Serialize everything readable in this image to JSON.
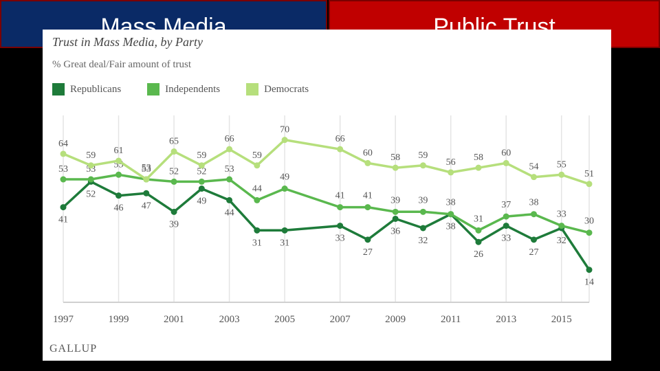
{
  "slide": {
    "left_title": "Mass Media",
    "right_title": "Public Trust",
    "left_color": "#0a2a66",
    "right_color": "#c00000"
  },
  "source_label": "GALLUP",
  "chart_data": {
    "type": "line",
    "title": "Trust in Mass Media, by Party",
    "subtitle": "% Great deal/Fair amount of trust",
    "x": [
      1997,
      1998,
      1999,
      2000,
      2001,
      2002,
      2003,
      2004,
      2005,
      2007,
      2008,
      2009,
      2010,
      2011,
      2012,
      2013,
      2014,
      2015,
      2016
    ],
    "x_tick_labels": [
      "1997",
      "1999",
      "2001",
      "2003",
      "2005",
      "2007",
      "2009",
      "2011",
      "2013",
      "2015"
    ],
    "xlim": [
      1997,
      2016
    ],
    "ylim": [
      0,
      85
    ],
    "grid": "vertical",
    "legend_position": "top-left",
    "series": [
      {
        "name": "Republicans",
        "color": "#1e7b3a",
        "values": [
          41,
          52,
          46,
          47,
          39,
          49,
          44,
          31,
          31,
          33,
          27,
          36,
          32,
          38,
          26,
          33,
          27,
          32,
          14
        ]
      },
      {
        "name": "Independents",
        "color": "#5ab84e",
        "values": [
          53,
          53,
          55,
          53,
          52,
          52,
          53,
          44,
          49,
          41,
          41,
          39,
          39,
          38,
          31,
          37,
          38,
          33,
          30
        ]
      },
      {
        "name": "Democrats",
        "color": "#b6df7c",
        "values": [
          64,
          59,
          61,
          53,
          65,
          59,
          66,
          59,
          70,
          66,
          60,
          58,
          59,
          56,
          58,
          60,
          54,
          55,
          51
        ]
      }
    ]
  }
}
